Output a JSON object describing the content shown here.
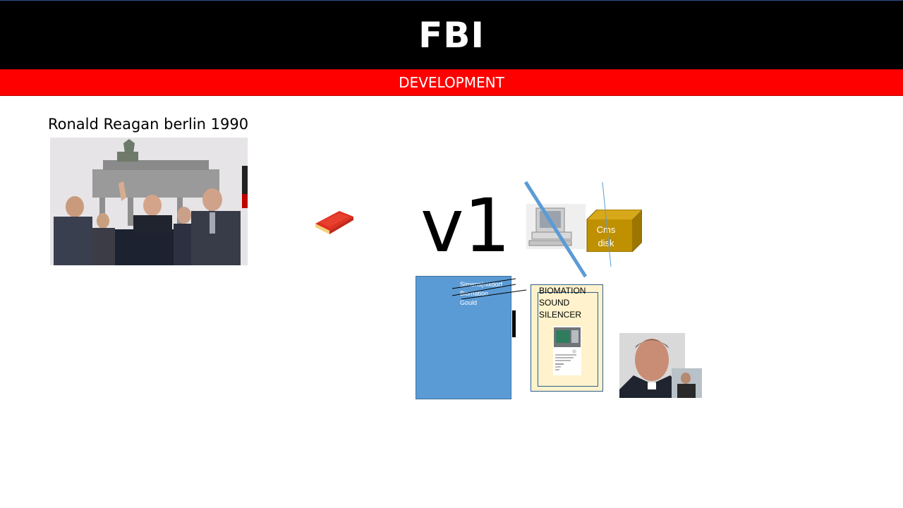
{
  "header": {
    "title": "FBI"
  },
  "subheader": {
    "title": "DEVELOPMENT"
  },
  "photo_caption": "Ronald Reagan berlin 1990",
  "version_label": "v1",
  "blue_box_list": [
    "Simens(nixdorf",
    "Biomation",
    "Gould"
  ],
  "card_lines": [
    "BIOMATION",
    "SOUND",
    "SILENCER"
  ],
  "cms_label_lines": [
    "Cms",
    "disk"
  ],
  "colors": {
    "header_bg": "#000000",
    "subheader_bg": "#ff0000",
    "blue_box": "#5b9bd5",
    "card_bg": "#fff2cc",
    "cms_box": "#bf9000",
    "strike_line": "#5b9bd5"
  }
}
